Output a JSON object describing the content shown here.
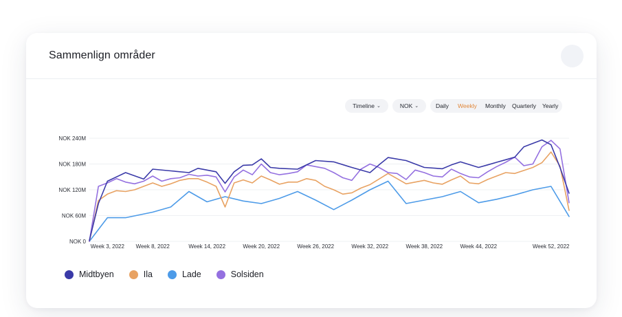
{
  "card": {
    "title": "Sammenlign områder"
  },
  "controls": {
    "timeline_label": "Timeline",
    "currency_label": "NOK",
    "periods": [
      "Daily",
      "Weekly",
      "Monthly",
      "Quarterly",
      "Yearly"
    ],
    "active_period": "Weekly",
    "caret_icon": "chevron-down-icon"
  },
  "colors": {
    "Midtbyen": "#3a3aa8",
    "Ila": "#e8a262",
    "Lade": "#4d9be8",
    "Solsiden": "#9470e0",
    "active_period": "#e0873a"
  },
  "chart_data": {
    "type": "line",
    "ylim": [
      0,
      240
    ],
    "y_unit": "NOK M",
    "y_ticks": [
      0,
      60,
      120,
      180,
      240
    ],
    "y_tick_labels": [
      "NOK 0",
      "NOK 60M",
      "NOK 120M",
      "NOK 180M",
      "NOK 240M"
    ],
    "grid": true,
    "legend_position": "bottom-left",
    "x_tick_labels": [
      "Week 3, 2022",
      "Week 8, 2022",
      "Week 14, 2022",
      "Week 20, 2022",
      "Week 26, 2022",
      "Week 32, 2022",
      "Week 38, 2022",
      "Week 44, 2022",
      "Week 52, 2022"
    ],
    "x_tick_weeks": [
      3,
      8,
      14,
      20,
      26,
      32,
      38,
      44,
      52
    ],
    "series": [
      {
        "name": "Midtbyen",
        "x": [
          1,
          2,
          3,
          5,
          7,
          8,
          10,
          12,
          13,
          15,
          16,
          17,
          18,
          19,
          20,
          21,
          22,
          24,
          26,
          28,
          30,
          32,
          33,
          34,
          36,
          38,
          40,
          41,
          42,
          44,
          45,
          46,
          47,
          48,
          49,
          50,
          51,
          52,
          53,
          54
        ],
        "values": [
          2,
          88,
          140,
          160,
          145,
          168,
          164,
          160,
          170,
          162,
          135,
          162,
          177,
          178,
          192,
          172,
          170,
          168,
          188,
          185,
          172,
          160,
          178,
          195,
          188,
          172,
          169,
          178,
          185,
          172,
          178,
          184,
          190,
          196,
          220,
          228,
          236,
          225,
          172,
          112
        ]
      },
      {
        "name": "Ila",
        "x": [
          1,
          2,
          3,
          4,
          5,
          6,
          7,
          8,
          9,
          10,
          11,
          12,
          13,
          14,
          15,
          16,
          17,
          18,
          19,
          20,
          21,
          22,
          23,
          24,
          25,
          26,
          27,
          28,
          29,
          30,
          31,
          32,
          33,
          34,
          35,
          36,
          37,
          38,
          39,
          40,
          41,
          42,
          43,
          44,
          45,
          46,
          47,
          48,
          49,
          50,
          51,
          52,
          53,
          54
        ],
        "values": [
          0,
          95,
          110,
          118,
          116,
          120,
          128,
          136,
          128,
          134,
          142,
          146,
          146,
          138,
          128,
          80,
          136,
          143,
          136,
          152,
          143,
          133,
          138,
          138,
          146,
          142,
          128,
          120,
          110,
          113,
          124,
          132,
          145,
          158,
          146,
          134,
          138,
          142,
          136,
          133,
          143,
          152,
          136,
          134,
          144,
          152,
          160,
          158,
          165,
          172,
          183,
          208,
          175,
          72
        ]
      },
      {
        "name": "Lade",
        "x": [
          1,
          3,
          5,
          8,
          10,
          12,
          14,
          16,
          18,
          20,
          22,
          24,
          26,
          28,
          30,
          32,
          34,
          36,
          38,
          40,
          42,
          44,
          46,
          48,
          50,
          52,
          54
        ],
        "values": [
          0,
          55,
          55,
          68,
          80,
          116,
          92,
          104,
          94,
          88,
          100,
          116,
          96,
          74,
          96,
          120,
          140,
          88,
          96,
          104,
          116,
          90,
          98,
          108,
          120,
          128,
          58
        ]
      },
      {
        "name": "Solsiden",
        "x": [
          1,
          2,
          3,
          4,
          5,
          6,
          7,
          8,
          9,
          10,
          11,
          12,
          13,
          14,
          15,
          16,
          17,
          18,
          19,
          20,
          21,
          22,
          23,
          24,
          25,
          26,
          27,
          28,
          29,
          30,
          31,
          32,
          33,
          34,
          35,
          36,
          37,
          38,
          39,
          40,
          41,
          42,
          43,
          44,
          45,
          46,
          47,
          48,
          49,
          50,
          51,
          52,
          53,
          54
        ],
        "values": [
          0,
          128,
          136,
          146,
          138,
          134,
          140,
          152,
          140,
          146,
          148,
          156,
          152,
          154,
          150,
          115,
          150,
          166,
          155,
          180,
          160,
          155,
          158,
          162,
          178,
          174,
          170,
          160,
          148,
          142,
          168,
          180,
          172,
          160,
          158,
          144,
          166,
          160,
          152,
          150,
          168,
          158,
          150,
          148,
          162,
          174,
          184,
          196,
          176,
          180,
          220,
          235,
          215,
          90
        ]
      }
    ]
  }
}
